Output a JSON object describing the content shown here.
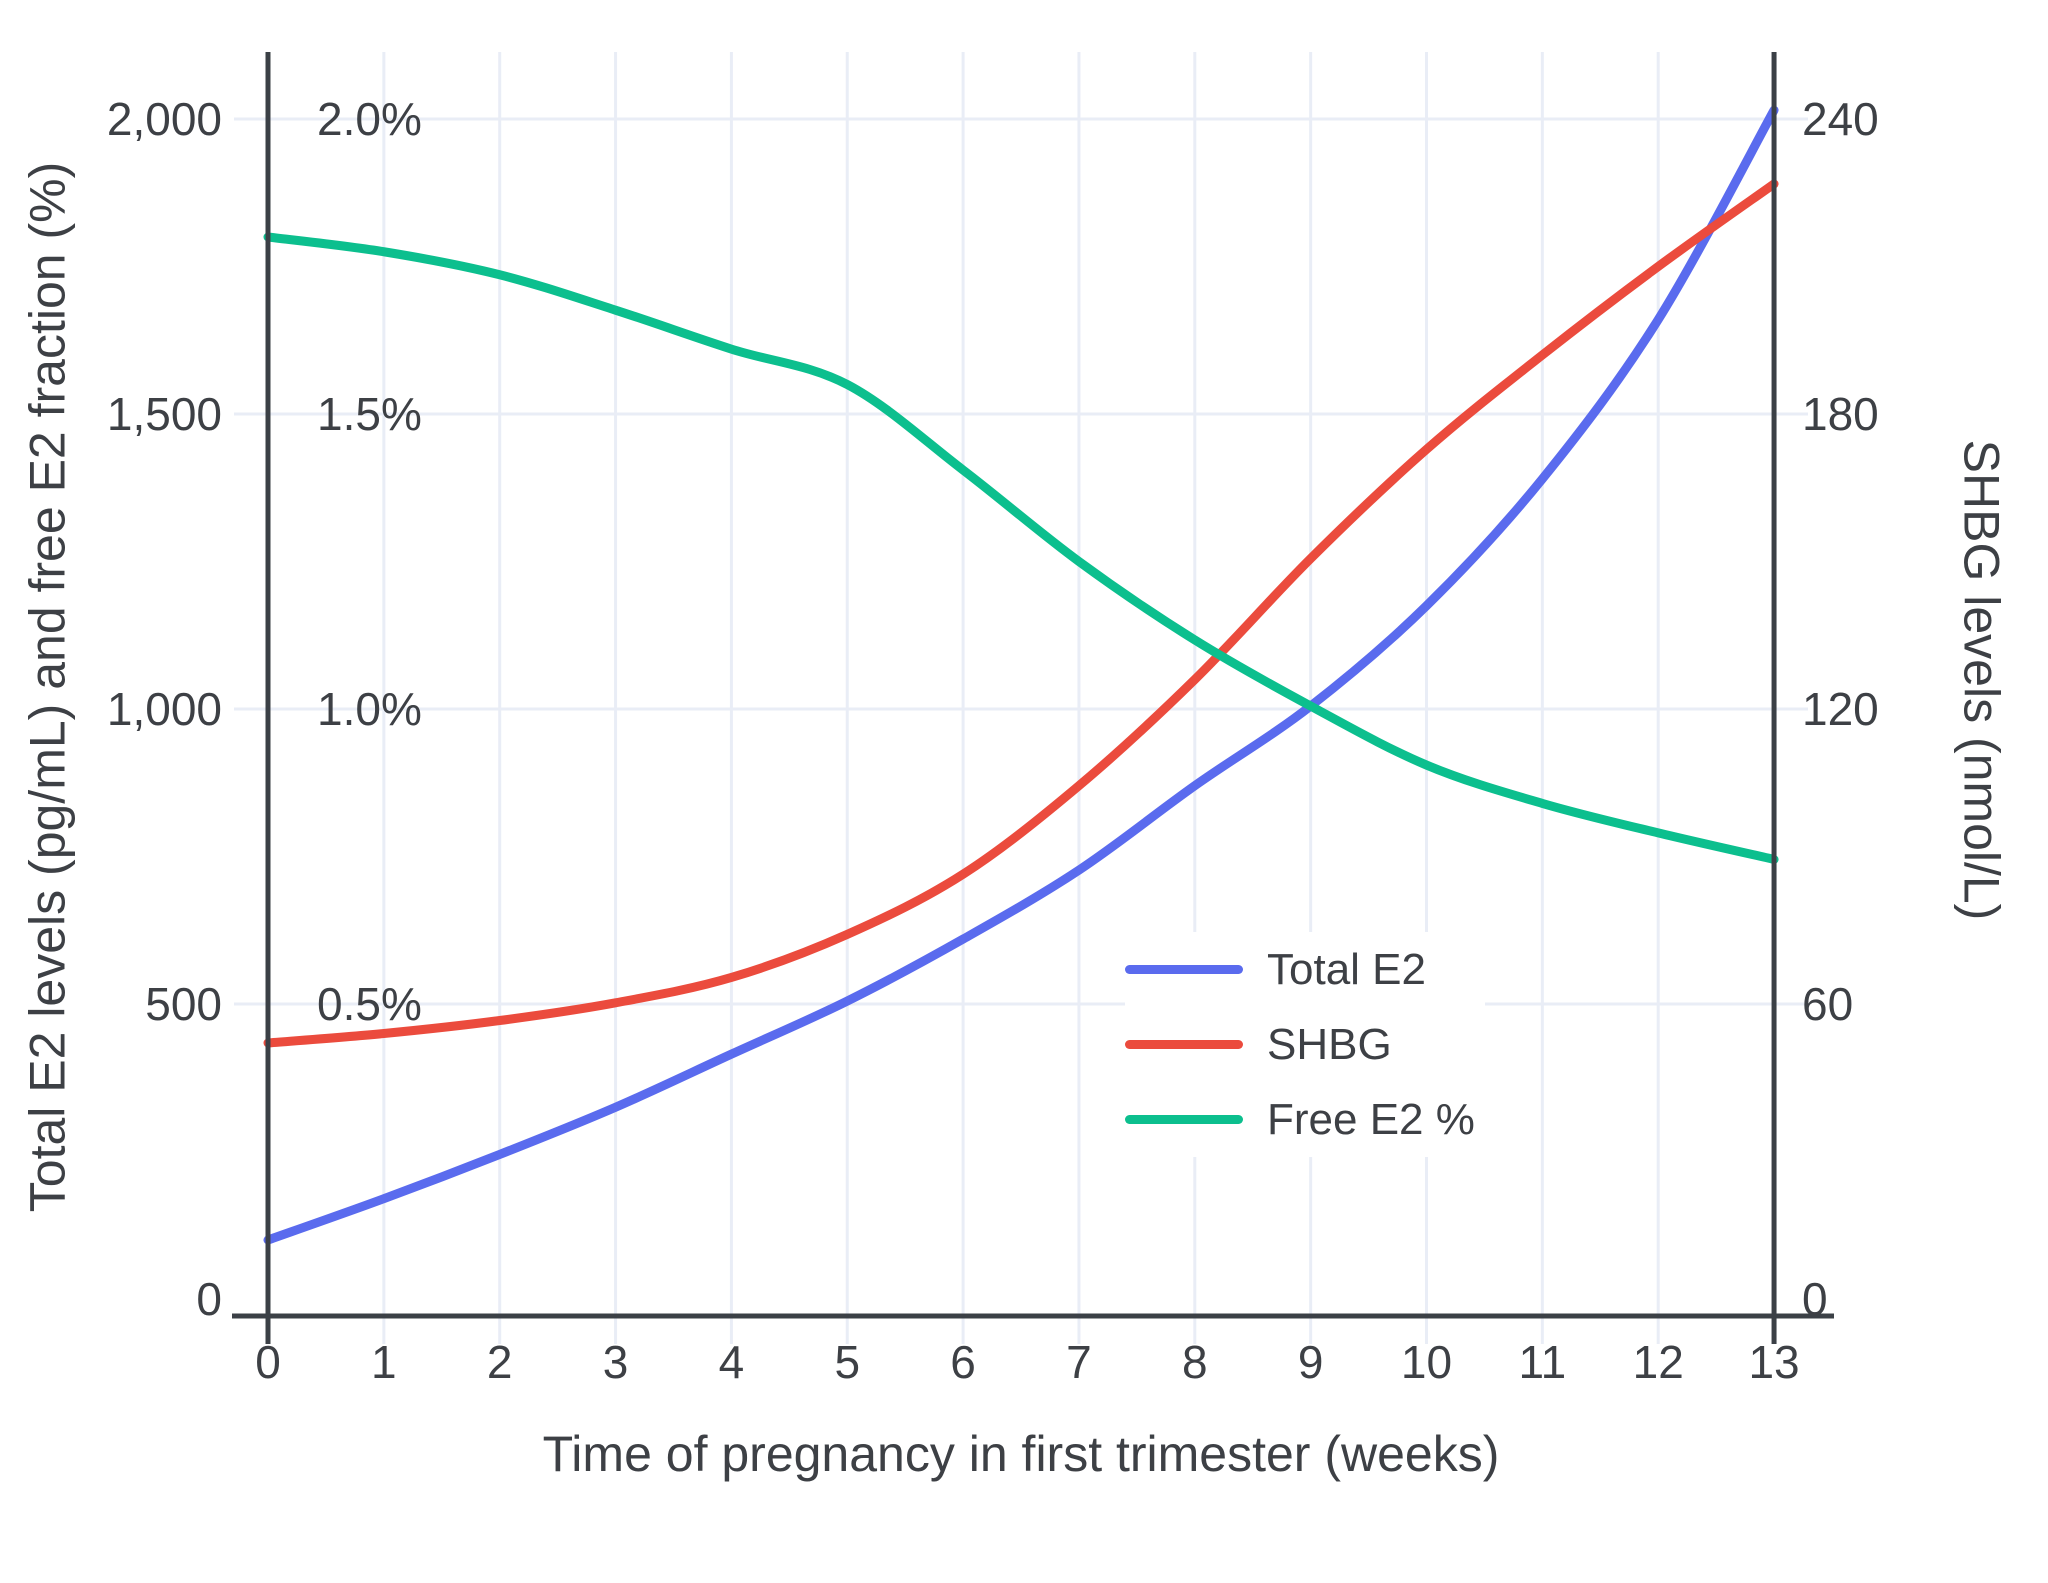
{
  "chart_data": {
    "type": "line",
    "title": "",
    "xlabel": "Time of pregnancy in first trimester (weeks)",
    "ylabel_left": "Total E2 levels (pg/mL) and free E2 fraction (%)",
    "ylabel_right": "SHBG levels (nmol/L)",
    "x": [
      0,
      1,
      2,
      3,
      4,
      5,
      6,
      7,
      8,
      9,
      10,
      11,
      12,
      13
    ],
    "x_tick_labels": [
      "0",
      "1",
      "2",
      "3",
      "4",
      "5",
      "6",
      "7",
      "8",
      "9",
      "10",
      "11",
      "12",
      "13"
    ],
    "xlim": [
      0,
      13
    ],
    "ylim_left": [
      0,
      2000
    ],
    "ylim_right": [
      0,
      240
    ],
    "grid": true,
    "legend_position": "inside-right-middle",
    "left_ticks": [
      {
        "at": 0,
        "label": "0"
      },
      {
        "at": 500,
        "label": "500"
      },
      {
        "at": 1000,
        "label": "1,000"
      },
      {
        "at": 1500,
        "label": "1,500"
      },
      {
        "at": 2000,
        "label": "2,000"
      }
    ],
    "percent_ticks": [
      {
        "at": 500,
        "label": "0.5%"
      },
      {
        "at": 1000,
        "label": "1.0%"
      },
      {
        "at": 1500,
        "label": "1.5%"
      },
      {
        "at": 2000,
        "label": "2.0%"
      }
    ],
    "right_ticks": [
      {
        "at": 0,
        "label": "0"
      },
      {
        "at": 500,
        "label": "60"
      },
      {
        "at": 1000,
        "label": "120"
      },
      {
        "at": 1500,
        "label": "180"
      },
      {
        "at": 2000,
        "label": "240"
      }
    ],
    "series": [
      {
        "name": "Total E2",
        "axis": "left",
        "units": "pg/mL",
        "color": "#5a6bee",
        "values": [
          100,
          170,
          245,
          325,
          415,
          505,
          610,
          727,
          870,
          1005,
          1175,
          1390,
          1660,
          2015
        ],
        "plot_values_left_scale": [
          100,
          170,
          245,
          325,
          415,
          505,
          610,
          727,
          870,
          1005,
          1175,
          1390,
          1660,
          2015
        ]
      },
      {
        "name": "SHBG",
        "axis": "right",
        "units": "nmol/L",
        "color": "#eb4b3d",
        "values": [
          52,
          54,
          57,
          60,
          65,
          74,
          86,
          104,
          126,
          151,
          173,
          192,
          210,
          227
        ],
        "plot_values_left_scale": [
          434,
          450,
          472,
          502,
          545,
          618,
          720,
          870,
          1050,
          1255,
          1440,
          1600,
          1750,
          1890
        ]
      },
      {
        "name": "Free E2 %",
        "axis": "left-percent",
        "units": "%",
        "color": "#0cbf8e",
        "values": [
          1.8,
          1.78,
          1.74,
          1.68,
          1.61,
          1.55,
          1.41,
          1.25,
          1.12,
          1.0,
          0.91,
          0.84,
          0.79,
          0.74
        ],
        "plot_values_left_scale": [
          1800,
          1775,
          1736,
          1676,
          1610,
          1550,
          1405,
          1250,
          1117,
          1005,
          905,
          840,
          790,
          745
        ]
      }
    ],
    "colors": {
      "grid": "#e9edf6",
      "axis": "#3b4046",
      "text": "#3d4045",
      "background": "#ffffff"
    }
  }
}
